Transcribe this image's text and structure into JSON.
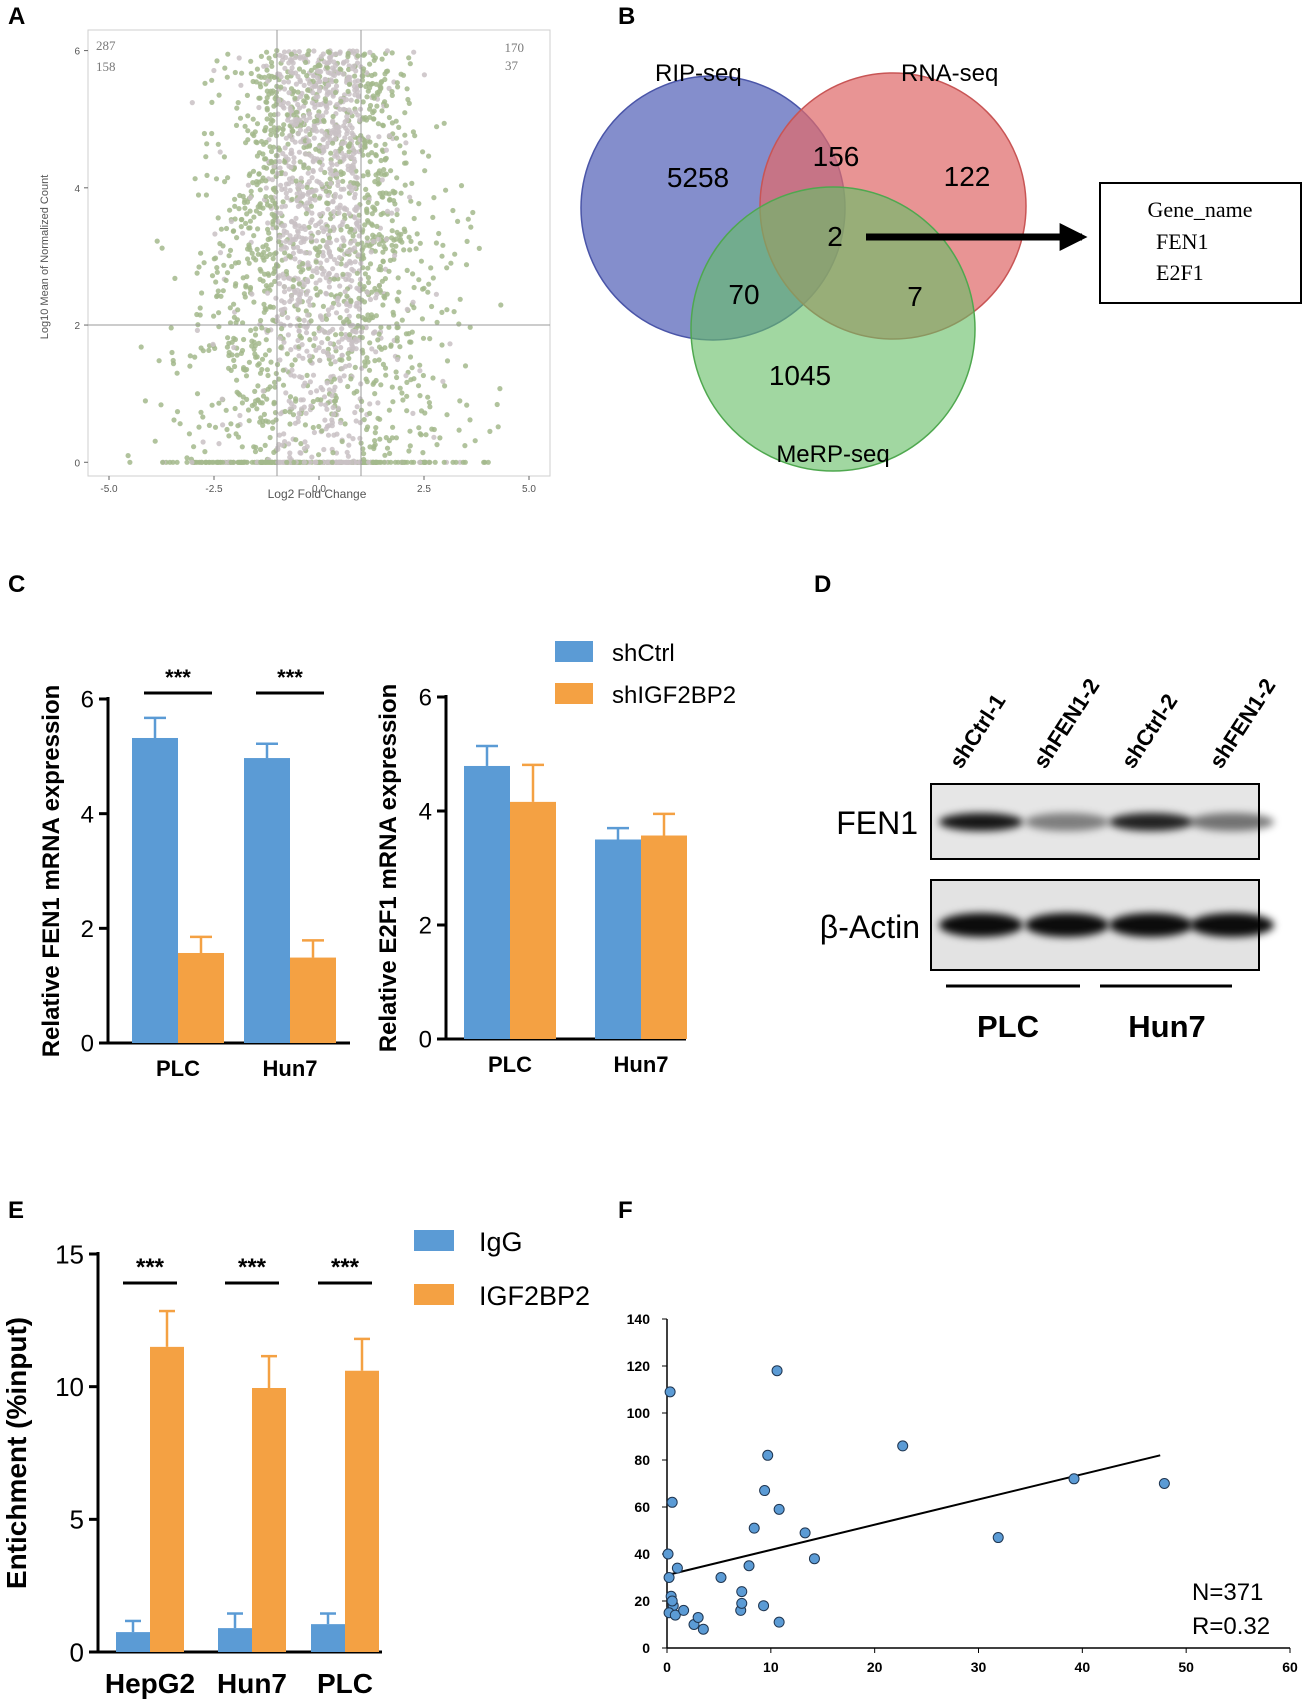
{
  "panel_labels": {
    "a": "A",
    "b": "B",
    "c": "C",
    "d": "D",
    "e": "E",
    "f": "F"
  },
  "colors": {
    "blue": "#5b9bd5",
    "orange": "#f4a143",
    "scatter_green": "#a3b98c",
    "scatter_grey": "#c9c1c4",
    "rip": "#5563b8",
    "rna": "#df6b6b",
    "merp": "#67bf67",
    "dot_blue": "#5b9bd5"
  },
  "chart_data": [
    {
      "id": "A",
      "type": "scatter",
      "title": "",
      "xlabel": "Log2 Fold Change",
      "ylabel": "Log10 Mean of Normalized Count",
      "xlim": [
        -5.5,
        5.5
      ],
      "ylim": [
        -0.2,
        6.3
      ],
      "xticks": [
        -5.0,
        -2.5,
        0.0,
        2.5,
        5.0
      ],
      "xtick_labels": [
        "-5.0",
        "-2.5",
        "0.0",
        "2.5",
        "5.0"
      ],
      "yticks": [
        0,
        2,
        4,
        6
      ],
      "ytick_labels": [
        "0",
        "2",
        "4",
        "6"
      ],
      "threshold_x": [
        -1,
        1
      ],
      "threshold_y": 2,
      "annotations": {
        "top_left": [
          "287",
          "158"
        ],
        "top_right": [
          "170",
          "37"
        ]
      },
      "n_points_sampled": 2600
    },
    {
      "id": "B",
      "type": "venn",
      "sets": [
        "RIP-seq",
        "RNA-seq",
        "MeRP-seq"
      ],
      "regions": {
        "rip_only": "5258",
        "rna_only": "122",
        "merp_only": "1045",
        "rip_rna": "156",
        "rip_merp": "70",
        "rna_merp": "7",
        "all": "2"
      },
      "callout": {
        "title": "Gene_name",
        "genes": [
          "FEN1",
          "E2F1"
        ]
      }
    },
    {
      "id": "C1",
      "type": "bar",
      "categories": [
        "PLC",
        "Hun7"
      ],
      "series": [
        {
          "name": "shCtrl",
          "values": [
            5.32,
            4.97
          ],
          "errors": [
            0.35,
            0.25
          ]
        },
        {
          "name": "shIGF2BP2",
          "values": [
            1.57,
            1.49
          ],
          "errors": [
            0.28,
            0.3
          ]
        }
      ],
      "ylabel": "Relative FEN1 mRNA expression",
      "ylim": [
        0,
        6
      ],
      "yticks": [
        0,
        2,
        4,
        6
      ],
      "significance": [
        "***",
        "***"
      ]
    },
    {
      "id": "C2",
      "type": "bar",
      "categories": [
        "PLC",
        "Hun7"
      ],
      "series": [
        {
          "name": "shCtrl",
          "values": [
            4.79,
            3.5
          ],
          "errors": [
            0.35,
            0.2
          ]
        },
        {
          "name": "shIGF2BP2",
          "values": [
            4.16,
            3.57
          ],
          "errors": [
            0.65,
            0.38
          ]
        }
      ],
      "ylabel": "Relative E2F1 mRNA expression",
      "ylim": [
        0,
        6
      ],
      "yticks": [
        0,
        2,
        4,
        6
      ],
      "legend": [
        "shCtrl",
        "shIGF2BP2"
      ]
    },
    {
      "id": "E",
      "type": "bar",
      "categories": [
        "HepG2",
        "Hun7",
        "PLC"
      ],
      "series": [
        {
          "name": "IgG",
          "values": [
            0.75,
            0.9,
            1.05
          ],
          "errors": [
            0.42,
            0.55,
            0.4
          ]
        },
        {
          "name": "IGF2BP2",
          "values": [
            11.5,
            9.95,
            10.6
          ],
          "errors": [
            1.35,
            1.2,
            1.2
          ]
        }
      ],
      "ylabel": "Entichment (%input)",
      "ylim": [
        0,
        15
      ],
      "yticks": [
        0,
        5,
        10,
        15
      ],
      "significance": [
        "***",
        "***",
        "***"
      ],
      "legend": [
        "IgG",
        "IGF2BP2"
      ]
    },
    {
      "id": "F",
      "type": "scatter",
      "xlim": [
        0,
        60
      ],
      "ylim": [
        0,
        140
      ],
      "xticks": [
        0,
        10,
        20,
        30,
        40,
        50,
        60
      ],
      "yticks": [
        0,
        20,
        40,
        60,
        80,
        100,
        120,
        140
      ],
      "points": [
        [
          0.3,
          109
        ],
        [
          0.5,
          62
        ],
        [
          0.1,
          40
        ],
        [
          0.2,
          30
        ],
        [
          0.4,
          22
        ],
        [
          0.6,
          18
        ],
        [
          0.2,
          15
        ],
        [
          0.8,
          14
        ],
        [
          0.5,
          20
        ],
        [
          1.0,
          34
        ],
        [
          1.6,
          16
        ],
        [
          2.6,
          10
        ],
        [
          3.0,
          13
        ],
        [
          3.5,
          8
        ],
        [
          5.2,
          30
        ],
        [
          7.2,
          24
        ],
        [
          7.1,
          16
        ],
        [
          7.2,
          19
        ],
        [
          7.9,
          35
        ],
        [
          8.4,
          51
        ],
        [
          9.3,
          18
        ],
        [
          9.4,
          67
        ],
        [
          9.7,
          82
        ],
        [
          10.6,
          118
        ],
        [
          10.8,
          59
        ],
        [
          10.8,
          11
        ],
        [
          13.3,
          49
        ],
        [
          14.2,
          38
        ],
        [
          22.7,
          86
        ],
        [
          31.9,
          47
        ],
        [
          39.2,
          72
        ],
        [
          47.9,
          70
        ]
      ],
      "fit": {
        "x0": 0,
        "y0": 31,
        "x1": 47.5,
        "y1": 82
      },
      "annotations": [
        "N=371",
        "R=0.32"
      ]
    }
  ],
  "western_blot": {
    "lanes": [
      "shCtrl-1",
      "shFEN1-2",
      "shCtrl-2",
      "shFEN1-2"
    ],
    "rows": [
      "FEN1",
      "β-Actin"
    ],
    "groups": [
      "PLC",
      "Hun7"
    ],
    "band_intensity": {
      "FEN1": [
        0.9,
        0.45,
        0.85,
        0.5
      ],
      "β-Actin": [
        0.95,
        0.95,
        0.95,
        0.95
      ]
    }
  }
}
